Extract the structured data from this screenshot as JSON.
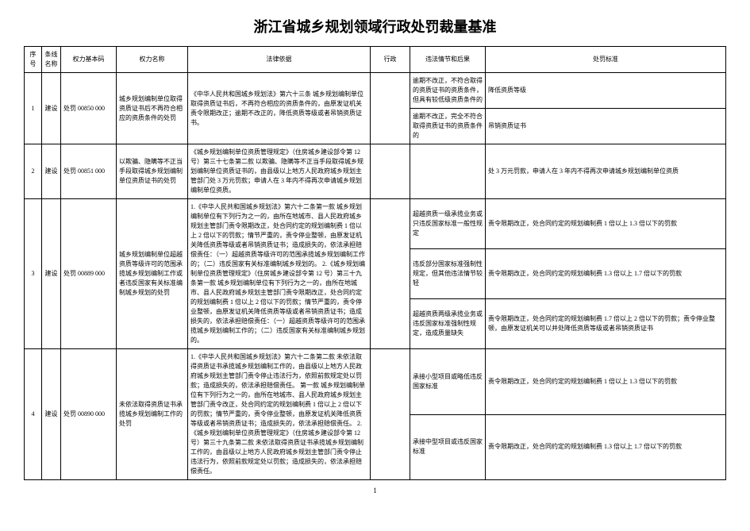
{
  "title": "浙江省城乡规划领域行政处罚裁量基准",
  "headers": {
    "seq": "序号",
    "sys": "条线名称",
    "code": "权力基本码",
    "name": "权力名称",
    "legal": "法律依据",
    "scope": "行政",
    "circ": "违法情节和后果",
    "std": "处罚标准"
  },
  "rows": {
    "r1": {
      "seq": "1",
      "sys": "建设",
      "code": "处罚 00850 000",
      "name": "城乡规划编制单位取得资质证书后不再符合相应的资质条件的处罚",
      "legal": "《中华人民共和国城乡规划法》第六十三条  城乡规划编制单位取得资质证书后，不再符合相应的资质条件的，由原发证机关责令限期改正；逾期不改正的，降低资质等级或者吊销资质证书。",
      "circ1": "逾期不改正，不符合取得的资质证书的资质条件，但具有较低级资质条件的",
      "std1": "降低资质等级",
      "circ2": "逾期不改正，完全不符合取得资质证书的资质条件的",
      "std2": "吊销资质证书"
    },
    "r2": {
      "seq": "2",
      "sys": "建设",
      "code": "处罚 00851 000",
      "name": "以欺骗、隐瞒等不正当手段取得城乡规划编制单位资质证书的处罚",
      "legal": "《城乡规划编制单位资质管理规定》（住房城乡建设部令第 12 号）第三十七条第二款  以欺骗、隐瞒等不正当手段取得城乡规划编制单位资质证书的，由县级以上地方人民政府城乡规划主管部门处 3 万元罚款；申请人在 3 年内不得再次申请城乡规划编制单位资质。",
      "std": "处 3 万元罚款，申请人在 3 年内不得再次申请城乡规划编制单位资质"
    },
    "r3": {
      "seq": "3",
      "sys": "建设",
      "code": "处罚 00889 000",
      "name": "城乡规划编制单位超越资质等级许可的范围承揽城乡规划编制工作或者违反国家有关标准编制城乡规划的处罚",
      "legal": "1.《中华人民共和国城乡规划法》第六十二条第一款  城乡规划编制单位有下列行为之一的，由所在地城市、县人民政府城乡规划主管部门责令限期改正，处合同约定的规划编制费 1 倍以上 2 倍以下的罚款；情节严重的，责令停业整顿，由原发证机关降低资质等级或者吊销资质证书；造成损失的，依法承担赔偿责任：（一）超越资质等级许可的范围承揽城乡规划编制工作的；（二）违反国家有关标准编制城乡规划的。\n2.《城乡规划编制单位资质管理规定》（住房城乡建设部令第 12 号）第三十九条第一款  城乡规划编制单位有下列行为之一的，由所在地城市、县人民政府城乡规划主管部门责令限期改正，处合同约定的规划编制费 1 倍以上 2 倍以下的罚款；情节严重的，责令停业整顿，由原发证机关降低资质等级或者吊销资质证书；造成损失的，依法承担赔偿责任：（一）超越资质等级许可的范围承揽城乡规划编制工作的；（二）违反国家有关标准编制城乡规划的。",
      "circ1": "超越资质一级承揽业务或只违反国家标准一般性规定",
      "std1": "责令限期改正，处合同约定的规划编制费 1 倍以上 1.3 倍以下的罚款",
      "circ2": "违反部分国家标准强制性规定，但其他违法情节较轻",
      "std2": "责令限期改正，处合同约定的规划编制费 1.3 倍以上 1.7 倍以下的罚款",
      "circ3": "超越资质两级承揽业务或违反国家标准强制性规定，造成质量缺失",
      "std3": "责令限期改正，处合同约定的规划编制费 1.7 倍以上 2 倍以下的罚款；责令停业整顿，由原发证机关可以并处降低资质等级或者吊销资质证书"
    },
    "r4": {
      "seq": "4",
      "sys": "建设",
      "code": "处罚 00890 000",
      "name": "未依法取得资质证书承揽城乡规划编制工作的处罚",
      "legal": "1.《中华人民共和国城乡规划法》第六十二条第二款  未依法取得资质证书承揽城乡规划编制工作的，由县级以上地方人民政府城乡规划主管部门责令停止违法行为，依照前款规定处以罚款；造成损失的，依法承担赔偿责任。\n第一款  城乡规划编制单位有下列行为之一的，由所在地城市、县人民政府城乡规划主管部门责令改正，处合同约定的规划编制费 1 倍以上 2 倍以下的罚款；情节严重的，责令停业整顿，由原发证机关降低资质等级或者吊销资质证书；造成损失的，依法承担赔偿责任。\n2.《城乡规划编制单位资质管理规定》（住房城乡建设部令第 12 号）第三十九条第二款  未依法取得资质证书承揽城乡规划编制工作的，由县级以上地方人民政府城乡规划主管部门责令停止违法行为，依照前款规定处以罚款；造成损失的，依法承担赔偿责任。",
      "circ1": "承接小型项目或略低违反国家标准",
      "std1": "责令限期改正，处合同约定的规划编制费 1 倍以上 1.3 倍以下的罚款",
      "circ2": "承接中型项目或违反国家标准",
      "std2": "责令限期改正，处合同约定的规划编制费 1.3 倍以上 1.7 倍以下的罚款"
    }
  },
  "pageNum": "1"
}
